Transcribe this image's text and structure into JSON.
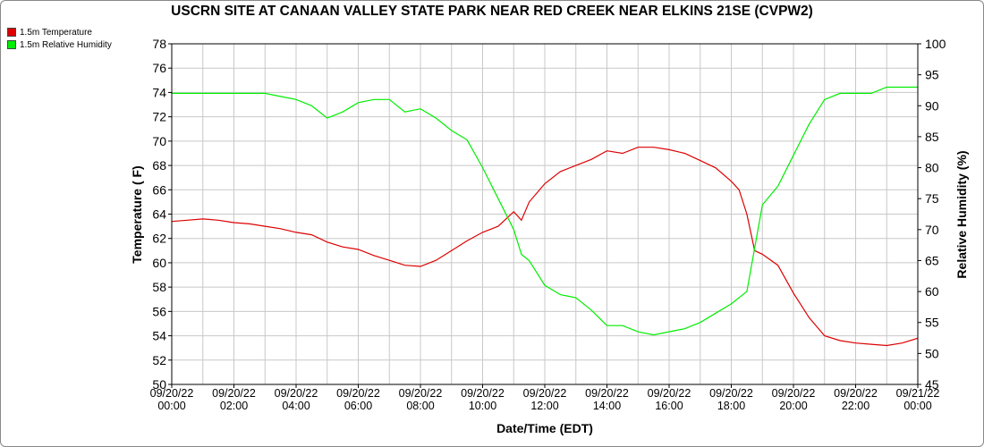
{
  "colors": {
    "temperature": "#dd0000",
    "humidity": "#00ee00",
    "grid": "#c8c8c8"
  },
  "chart_data": {
    "type": "line",
    "title": "USCRN SITE AT CANAAN VALLEY STATE PARK NEAR RED CREEK NEAR ELKINS 21SE (CVPW2)",
    "xlabel": "Date/Time (EDT)",
    "ylabel": "Temperature ( F)",
    "y2label": "Relative Humidity (%)",
    "grid": true,
    "legend_position": "top-left",
    "xlim": [
      0,
      24
    ],
    "ylim": [
      50,
      78
    ],
    "y2lim": [
      45,
      100
    ],
    "x_ticks": [
      {
        "date": "09/20/22",
        "time": "00:00"
      },
      {
        "date": "09/20/22",
        "time": "02:00"
      },
      {
        "date": "09/20/22",
        "time": "04:00"
      },
      {
        "date": "09/20/22",
        "time": "06:00"
      },
      {
        "date": "09/20/22",
        "time": "08:00"
      },
      {
        "date": "09/20/22",
        "time": "10:00"
      },
      {
        "date": "09/20/22",
        "time": "12:00"
      },
      {
        "date": "09/20/22",
        "time": "14:00"
      },
      {
        "date": "09/20/22",
        "time": "16:00"
      },
      {
        "date": "09/20/22",
        "time": "18:00"
      },
      {
        "date": "09/20/22",
        "time": "20:00"
      },
      {
        "date": "09/20/22",
        "time": "22:00"
      },
      {
        "date": "09/21/22",
        "time": "00:00"
      }
    ],
    "y_ticks": [
      "50",
      "52",
      "54",
      "56",
      "58",
      "60",
      "62",
      "64",
      "66",
      "68",
      "70",
      "72",
      "74",
      "76",
      "78"
    ],
    "y2_ticks": [
      "45",
      "50",
      "55",
      "60",
      "65",
      "70",
      "75",
      "80",
      "85",
      "90",
      "95",
      "100"
    ],
    "series": [
      {
        "name": "1.5m Temperature",
        "axis": "left",
        "x": [
          0,
          0.5,
          1,
          1.5,
          2,
          2.5,
          3,
          3.5,
          4,
          4.5,
          5,
          5.5,
          6,
          6.5,
          7,
          7.5,
          8,
          8.5,
          9,
          9.5,
          10,
          10.5,
          11,
          11.25,
          11.5,
          12,
          12.5,
          13,
          13.5,
          14,
          14.5,
          15,
          15.5,
          16,
          16.5,
          17,
          17.5,
          18,
          18.25,
          18.5,
          18.75,
          19,
          19.5,
          20,
          20.5,
          21,
          21.5,
          22,
          22.5,
          23,
          23.5,
          24
        ],
        "y": [
          63.4,
          63.5,
          63.6,
          63.5,
          63.3,
          63.2,
          63.0,
          62.8,
          62.5,
          62.3,
          61.7,
          61.3,
          61.1,
          60.6,
          60.2,
          59.8,
          59.7,
          60.2,
          61.0,
          61.8,
          62.5,
          63.0,
          64.2,
          63.5,
          65.0,
          66.5,
          67.5,
          68.0,
          68.5,
          69.2,
          69.0,
          69.5,
          69.5,
          69.3,
          69.0,
          68.4,
          67.8,
          66.7,
          66.0,
          64.0,
          61.0,
          60.7,
          59.8,
          57.5,
          55.5,
          54.0,
          53.6,
          53.4,
          53.3,
          53.2,
          53.4,
          53.8
        ]
      },
      {
        "name": "1.5m Relative Humidity",
        "axis": "right",
        "x": [
          0,
          0.5,
          1,
          1.5,
          2,
          2.5,
          3,
          3.5,
          4,
          4.5,
          5,
          5.5,
          6,
          6.5,
          7,
          7.5,
          8,
          8.5,
          9,
          9.5,
          10,
          10.5,
          11,
          11.25,
          11.5,
          12,
          12.5,
          13,
          13.5,
          14,
          14.5,
          15,
          15.5,
          16,
          16.5,
          17,
          17.5,
          18,
          18.5,
          19,
          19.25,
          19.5,
          20,
          20.5,
          21,
          21.5,
          22,
          22.5,
          23,
          23.5,
          24
        ],
        "y": [
          92.0,
          92.0,
          92.0,
          92.0,
          92.0,
          92.0,
          92.0,
          91.5,
          91.0,
          90.0,
          88.0,
          89.0,
          90.5,
          91.0,
          91.0,
          89.0,
          89.5,
          88.0,
          86.0,
          84.5,
          80.0,
          75.0,
          70.0,
          66.0,
          65.0,
          61.0,
          59.5,
          59.0,
          57.0,
          54.5,
          54.5,
          53.5,
          53.0,
          53.5,
          54.0,
          55.0,
          56.5,
          58.0,
          60.0,
          74.0,
          75.5,
          77.0,
          82.0,
          87.0,
          91.0,
          92.0,
          92.0,
          92.0,
          93.0,
          93.0,
          93.0
        ]
      }
    ]
  }
}
